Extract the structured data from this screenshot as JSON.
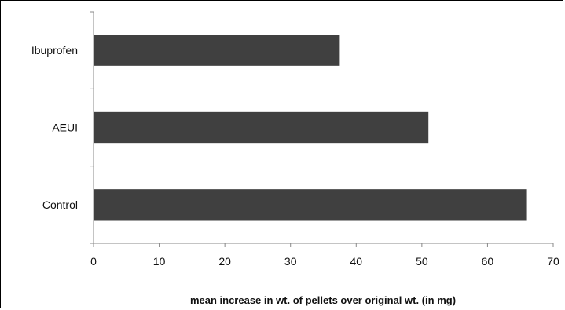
{
  "chart_data": {
    "type": "bar",
    "orientation": "horizontal",
    "categories": [
      "Ibuprofen",
      "AEUI",
      "Control"
    ],
    "values": [
      37.5,
      51.0,
      66.0
    ],
    "xlabel": "mean increase in wt. of pellets over original wt. (in mg)",
    "ylabel": "",
    "title": "",
    "xlim": [
      0,
      70
    ],
    "xticks": [
      "0",
      "10",
      "20",
      "30",
      "40",
      "50",
      "60",
      "70"
    ],
    "grid": false,
    "bar_color": "#404040"
  }
}
